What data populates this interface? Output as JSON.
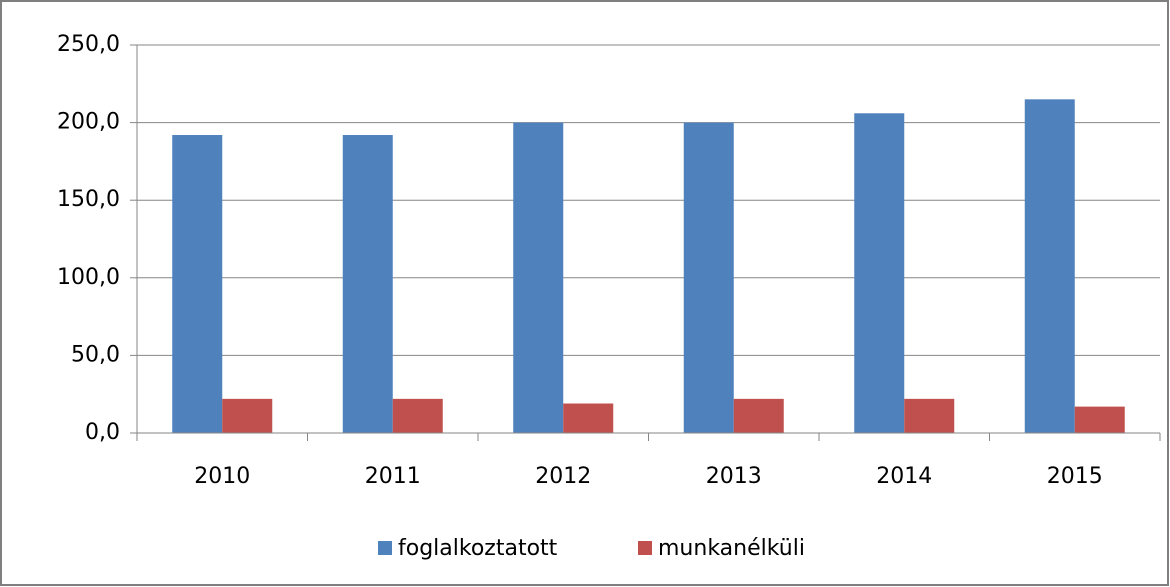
{
  "chart_data": {
    "type": "bar",
    "categories": [
      "2010",
      "2011",
      "2012",
      "2013",
      "2014",
      "2015"
    ],
    "series": [
      {
        "name": "foglalkoztatott",
        "color": "#4f81bd",
        "values": [
          192,
          192,
          200,
          200,
          206,
          215
        ]
      },
      {
        "name": "munkanélküli",
        "color": "#c0504d",
        "values": [
          22,
          22,
          19,
          22,
          22,
          17
        ]
      }
    ],
    "ylim": [
      0,
      250
    ],
    "yticks": [
      {
        "value": 0,
        "label": "0,0"
      },
      {
        "value": 50,
        "label": "50,0"
      },
      {
        "value": 100,
        "label": "100,0"
      },
      {
        "value": 150,
        "label": "150,0"
      },
      {
        "value": 200,
        "label": "200,0"
      },
      {
        "value": 250,
        "label": "250,0"
      }
    ],
    "grid": true,
    "legend": "bottom"
  }
}
